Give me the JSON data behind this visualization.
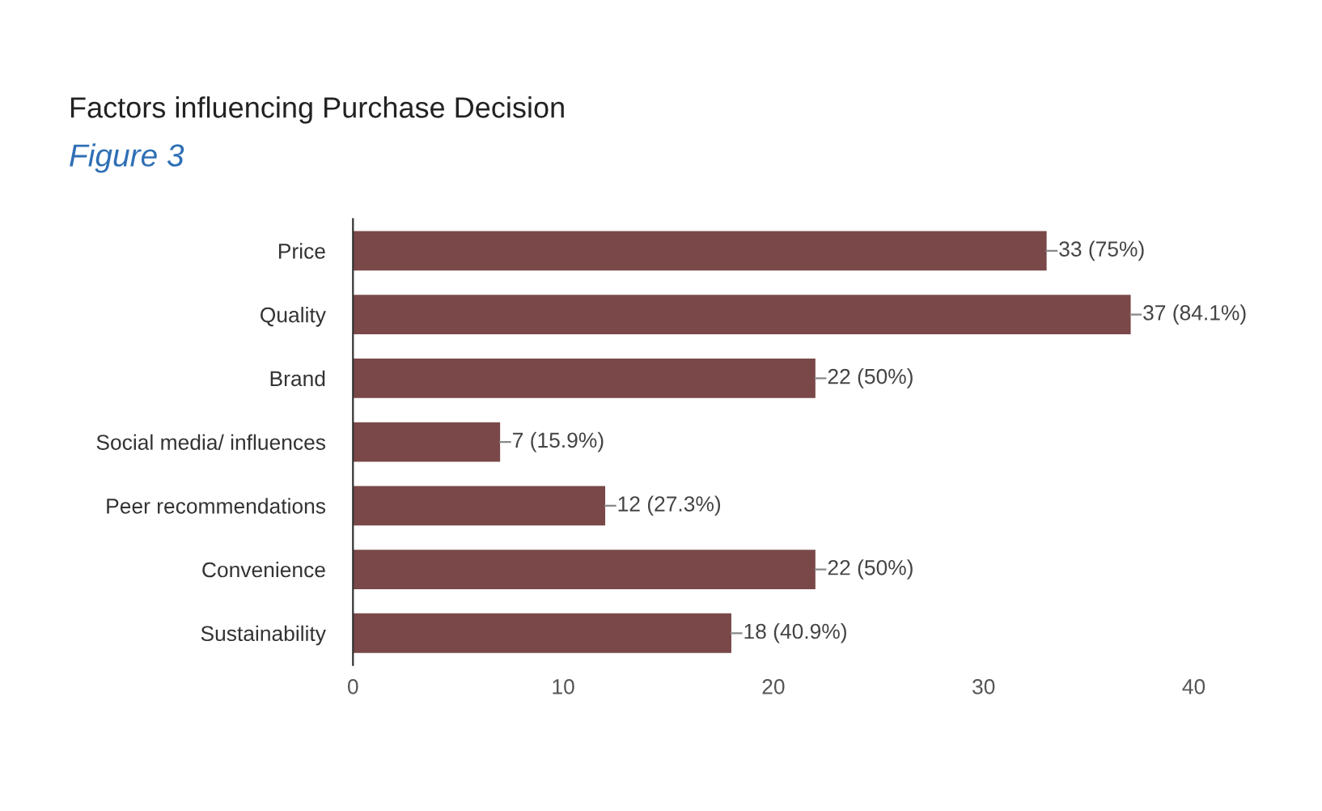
{
  "chart_data": {
    "type": "bar",
    "orientation": "horizontal",
    "title": "Factors influencing Purchase Decision",
    "subtitle": "Figure 3",
    "categories": [
      "Price",
      "Quality",
      "Brand",
      "Social media/ influences",
      "Peer recommendations",
      "Convenience",
      "Sustainability"
    ],
    "values": [
      33,
      37,
      22,
      7,
      12,
      22,
      18
    ],
    "value_labels": [
      "33 (75%)",
      "37 (84.1%)",
      "22 (50%)",
      "7 (15.9%)",
      "12 (27.3%)",
      "22 (50%)",
      "18 (40.9%)"
    ],
    "color": "#7a4848",
    "xlim": [
      0,
      40
    ],
    "xticks": [
      0,
      10,
      20,
      30,
      40
    ],
    "grid": false,
    "legend": false
  }
}
